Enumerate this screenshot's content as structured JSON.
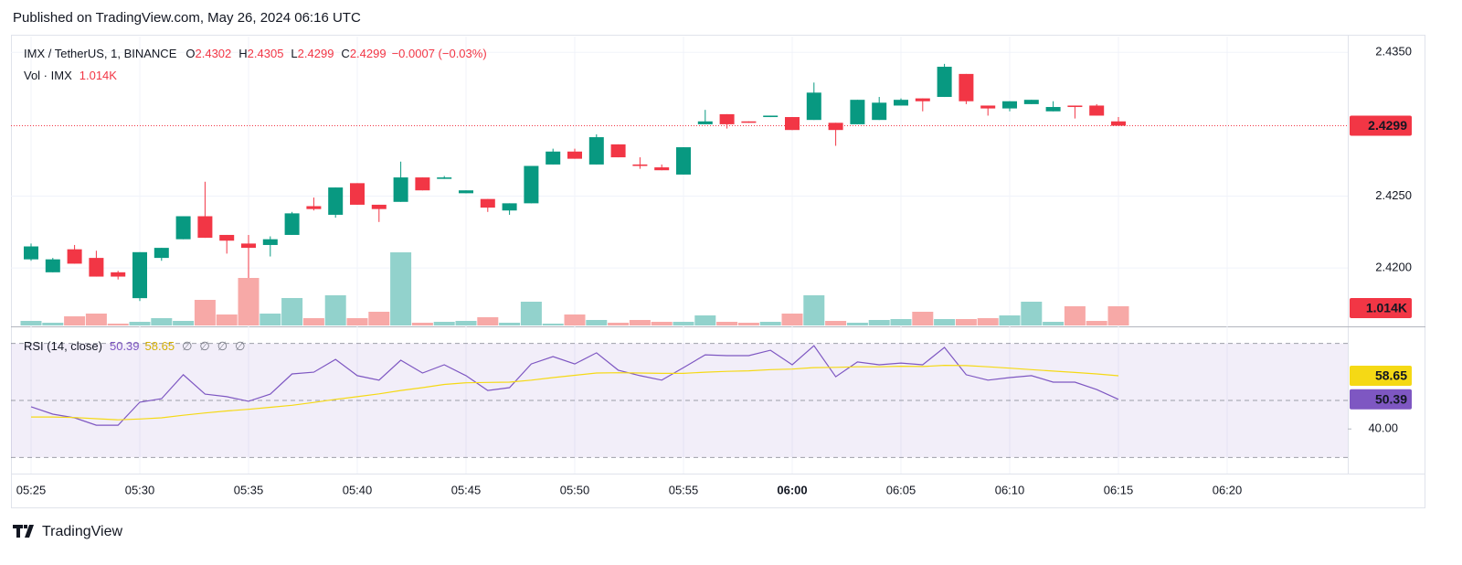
{
  "header": {
    "published": "Published on TradingView.com, May 26, 2024 06:16 UTC"
  },
  "footer": {
    "brand": "TradingView"
  },
  "chart_data": [
    {
      "type": "candlestick",
      "title": "IMX / TetherUS, 1, BINANCE",
      "ohlc_labels": [
        "O",
        "H",
        "L",
        "C"
      ],
      "change_text": "−0.0007 (−0.03%)",
      "up_color": "#089981",
      "down_color": "#f23645",
      "grid": true,
      "categories": [
        "05:25",
        "05:26",
        "05:27",
        "05:28",
        "05:29",
        "05:30",
        "05:31",
        "05:32",
        "05:33",
        "05:34",
        "05:35",
        "05:36",
        "05:37",
        "05:38",
        "05:39",
        "05:40",
        "05:41",
        "05:42",
        "05:43",
        "05:44",
        "05:45",
        "05:46",
        "05:47",
        "05:48",
        "05:49",
        "05:50",
        "05:51",
        "05:52",
        "05:53",
        "05:54",
        "05:55",
        "05:56",
        "05:57",
        "05:58",
        "05:59",
        "06:00",
        "06:01",
        "06:02",
        "06:03",
        "06:04",
        "06:05",
        "06:06",
        "06:07",
        "06:08",
        "06:09",
        "06:10",
        "06:11",
        "06:12",
        "06:13",
        "06:14",
        "06:15"
      ],
      "open": [
        2.4206,
        2.4197,
        2.4213,
        2.4207,
        2.4197,
        2.4179,
        2.4207,
        2.422,
        2.4236,
        2.4223,
        2.4217,
        2.4216,
        2.4223,
        2.4243,
        2.4237,
        2.4259,
        2.4244,
        2.4246,
        2.4263,
        2.4262,
        2.4252,
        2.4248,
        2.424,
        2.4245,
        2.4272,
        2.4281,
        2.4272,
        2.4286,
        2.4272,
        2.427,
        2.4265,
        2.43,
        2.4307,
        2.4302,
        2.4305,
        2.4305,
        2.4303,
        2.4301,
        2.43,
        2.4303,
        2.4313,
        2.4318,
        2.4319,
        2.4335,
        2.4313,
        2.4311,
        2.4314,
        2.4309,
        2.4313,
        2.4313,
        2.4302
      ],
      "high": [
        2.4217,
        2.4207,
        2.4216,
        2.4212,
        2.4198,
        2.4211,
        2.4214,
        2.4236,
        2.426,
        2.4223,
        2.4223,
        2.4222,
        2.4239,
        2.4249,
        2.4256,
        2.4259,
        2.4244,
        2.4274,
        2.4263,
        2.4264,
        2.4254,
        2.4248,
        2.4245,
        2.4271,
        2.4283,
        2.4283,
        2.4293,
        2.4286,
        2.4277,
        2.4272,
        2.4284,
        2.431,
        2.4307,
        2.4302,
        2.4306,
        2.4305,
        2.4329,
        2.4301,
        2.4317,
        2.4319,
        2.4318,
        2.4318,
        2.4342,
        2.4335,
        2.4313,
        2.4316,
        2.4317,
        2.4316,
        2.4313,
        2.4314,
        2.4305
      ],
      "low": [
        2.4205,
        2.4197,
        2.4203,
        2.4194,
        2.4192,
        2.4177,
        2.4205,
        2.422,
        2.4221,
        2.421,
        2.4192,
        2.4208,
        2.4223,
        2.424,
        2.4235,
        2.4244,
        2.4232,
        2.4246,
        2.4254,
        2.4262,
        2.4252,
        2.4239,
        2.4237,
        2.4245,
        2.4272,
        2.4276,
        2.4272,
        2.4277,
        2.4269,
        2.4268,
        2.4265,
        2.43,
        2.4297,
        2.4301,
        2.4305,
        2.4296,
        2.4303,
        2.4285,
        2.43,
        2.4303,
        2.4313,
        2.4309,
        2.4319,
        2.4314,
        2.4306,
        2.4309,
        2.4314,
        2.4309,
        2.4304,
        2.4306,
        2.4299
      ],
      "close": [
        2.4215,
        2.4206,
        2.4203,
        2.4194,
        2.4194,
        2.4211,
        2.4214,
        2.4236,
        2.4221,
        2.4219,
        2.4214,
        2.422,
        2.4238,
        2.4241,
        2.4256,
        2.4244,
        2.4241,
        2.4263,
        2.4254,
        2.4263,
        2.4254,
        2.4242,
        2.4245,
        2.4271,
        2.4281,
        2.4276,
        2.4291,
        2.4277,
        2.4271,
        2.4268,
        2.4284,
        2.4302,
        2.43,
        2.4301,
        2.4306,
        2.4296,
        2.4322,
        2.4296,
        2.4317,
        2.4315,
        2.4317,
        2.4316,
        2.434,
        2.4316,
        2.4311,
        2.4316,
        2.4317,
        2.4312,
        2.4312,
        2.4306,
        2.4299
      ],
      "ylim": [
        2.416,
        2.4361
      ],
      "yticks": [
        {
          "value": 2.435,
          "label": "2.4350"
        },
        {
          "value": 2.425,
          "label": "2.4250"
        },
        {
          "value": 2.42,
          "label": "2.4200"
        }
      ]
    },
    {
      "type": "bar",
      "name": "Vol · IMX",
      "last_label": "1.014K",
      "up_color": "#92d2cc",
      "down_color": "#f7a9a7",
      "values": [
        241,
        145,
        483,
        628,
        97,
        193,
        386,
        241,
        1352,
        580,
        2511,
        628,
        1449,
        386,
        1594,
        386,
        724,
        3863,
        145,
        193,
        241,
        435,
        145,
        1255,
        97,
        580,
        290,
        145,
        290,
        193,
        193,
        531,
        193,
        145,
        193,
        628,
        1594,
        241,
        145,
        290,
        338,
        724,
        338,
        338,
        386,
        531,
        1255,
        193,
        1014,
        241,
        1014
      ]
    },
    {
      "type": "line",
      "title": "RSI (14, close)",
      "placeholders": [
        "∅",
        "∅",
        "∅",
        "∅"
      ],
      "series": [
        {
          "color": "#7e57c2",
          "values": [
            47.8,
            45.2,
            43.9,
            41.3,
            41.3,
            49.4,
            50.6,
            59.0,
            52.2,
            51.3,
            49.7,
            52.2,
            59.3,
            59.9,
            64.4,
            58.7,
            57.1,
            64.1,
            59.6,
            62.5,
            58.7,
            53.5,
            54.5,
            62.8,
            65.4,
            62.8,
            66.7,
            60.6,
            58.7,
            57.1,
            61.5,
            66.0,
            65.7,
            65.7,
            67.6,
            62.5,
            69.2,
            58.3,
            63.5,
            62.5,
            63.1,
            62.5,
            68.6,
            59.0,
            57.1,
            58.0,
            58.7,
            56.4,
            56.4,
            53.8,
            50.39
          ]
        },
        {
          "color": "#f5d915",
          "values": [
            44.2,
            44.2,
            44.0,
            43.6,
            43.2,
            43.5,
            43.9,
            44.8,
            45.6,
            46.3,
            46.9,
            47.6,
            48.3,
            49.3,
            50.4,
            51.3,
            52.3,
            53.5,
            54.5,
            55.6,
            56.2,
            56.3,
            56.4,
            57.1,
            58.0,
            58.8,
            59.6,
            59.7,
            59.6,
            59.5,
            59.5,
            59.9,
            60.2,
            60.4,
            60.8,
            61.0,
            61.5,
            61.6,
            61.8,
            61.8,
            62.0,
            61.9,
            62.3,
            62.2,
            61.8,
            61.3,
            60.8,
            60.3,
            59.8,
            59.3,
            58.65
          ]
        }
      ],
      "bands": [
        70,
        50,
        30
      ],
      "band_color": "#7e57c2",
      "ylim": [
        25,
        75
      ],
      "yticks": [
        {
          "value": 40,
          "label": "40.00"
        }
      ],
      "xticks": [
        "05:25",
        "05:30",
        "05:35",
        "05:40",
        "05:45",
        "05:50",
        "05:55",
        "06:00",
        "06:05",
        "06:10",
        "06:15",
        "06:20"
      ]
    }
  ]
}
